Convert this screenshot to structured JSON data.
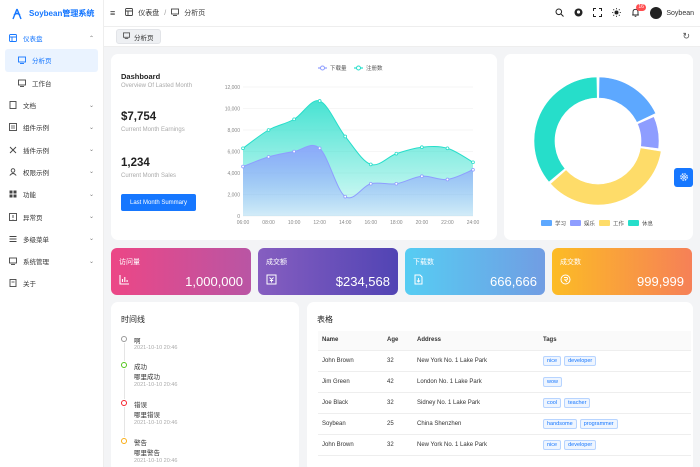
{
  "app": {
    "title": "Soybean管理系统"
  },
  "sidebar": {
    "items": [
      {
        "label": "仪表盘",
        "icon": "dashboard-icon"
      },
      {
        "label": "分析页",
        "icon": "analysis-icon"
      },
      {
        "label": "工作台",
        "icon": "workbench-icon"
      },
      {
        "label": "文档",
        "icon": "document-icon"
      },
      {
        "label": "组件示例",
        "icon": "component-icon"
      },
      {
        "label": "插件示例",
        "icon": "plugin-icon"
      },
      {
        "label": "权限示例",
        "icon": "permission-icon"
      },
      {
        "label": "功能",
        "icon": "function-icon"
      },
      {
        "label": "异常页",
        "icon": "exception-icon"
      },
      {
        "label": "多级菜单",
        "icon": "multi-menu-icon"
      },
      {
        "label": "系统管理",
        "icon": "system-icon"
      },
      {
        "label": "关于",
        "icon": "about-icon"
      }
    ]
  },
  "header": {
    "breadcrumb": [
      "仪表盘",
      "分析页"
    ],
    "separator": "/",
    "notification_count": "16",
    "username": "Soybean"
  },
  "tabs": {
    "active": "分析页"
  },
  "dashboard": {
    "title": "Dashboard",
    "subtitle": "Overview Of Lasted Month",
    "earnings_value": "$7,754",
    "earnings_label": "Current Month Earnings",
    "sales_value": "1,234",
    "sales_label": "Current Month Sales",
    "button": "Last Month Summary"
  },
  "chart_data": [
    {
      "type": "area",
      "legend": [
        "下载量",
        "注册数"
      ],
      "x": [
        "06:00",
        "08:00",
        "10:00",
        "12:00",
        "14:00",
        "16:00",
        "18:00",
        "20:00",
        "22:00",
        "24:00"
      ],
      "series": [
        {
          "name": "下载量",
          "color": "#8e9dff",
          "values": [
            4600,
            5500,
            6000,
            6300,
            1800,
            3000,
            3000,
            3700,
            3400,
            4300
          ]
        },
        {
          "name": "注册数",
          "color": "#26deca",
          "values": [
            6300,
            8000,
            9000,
            10700,
            7400,
            4800,
            5800,
            6400,
            6300,
            5000
          ]
        }
      ],
      "ylim": [
        0,
        12000
      ],
      "yticks": [
        "0",
        "2,000",
        "4,000",
        "6,000",
        "8,000",
        "10,000",
        "12,000"
      ]
    },
    {
      "type": "pie",
      "categories": [
        "学习",
        "娱乐",
        "工作",
        "休息"
      ],
      "values": [
        20,
        10,
        40,
        40
      ],
      "colors": [
        "#5da8ff",
        "#8e9dff",
        "#fedc69",
        "#26deca"
      ]
    }
  ],
  "kpis": [
    {
      "label": "访问量",
      "value": "1,000,000",
      "icon": "bar-chart-icon"
    },
    {
      "label": "成交额",
      "value": "$234,568",
      "icon": "money-bag-icon"
    },
    {
      "label": "下载数",
      "value": "666,666",
      "icon": "download-file-icon"
    },
    {
      "label": "成交数",
      "value": "999,999",
      "icon": "coin-icon"
    }
  ],
  "timeline": {
    "title": "时间线",
    "items": [
      {
        "title": "啊",
        "desc": "",
        "date": "2021-10-10 20:46",
        "color": "#999999"
      },
      {
        "title": "成功",
        "desc": "哪里成功",
        "date": "2021-10-10 20:46",
        "color": "#52c41a"
      },
      {
        "title": "错误",
        "desc": "哪里错误",
        "date": "2021-10-10 20:46",
        "color": "#f5222d"
      },
      {
        "title": "警告",
        "desc": "哪里警告",
        "date": "2021-10-10 20:46",
        "color": "#faad14"
      }
    ]
  },
  "table": {
    "title": "表格",
    "columns": [
      "Name",
      "Age",
      "Address",
      "Tags"
    ],
    "rows": [
      {
        "name": "John Brown",
        "age": "32",
        "address": "New York No. 1 Lake Park",
        "tags": [
          "nice",
          "developer"
        ]
      },
      {
        "name": "Jim Green",
        "age": "42",
        "address": "London No. 1 Lake Park",
        "tags": [
          "wow"
        ]
      },
      {
        "name": "Joe Black",
        "age": "32",
        "address": "Sidney No. 1 Lake Park",
        "tags": [
          "cool",
          "teacher"
        ]
      },
      {
        "name": "Soybean",
        "age": "25",
        "address": "China Shenzhen",
        "tags": [
          "handsome",
          "programmer"
        ]
      },
      {
        "name": "John Brown",
        "age": "32",
        "address": "New York No. 1 Lake Park",
        "tags": [
          "nice",
          "developer"
        ]
      }
    ]
  }
}
